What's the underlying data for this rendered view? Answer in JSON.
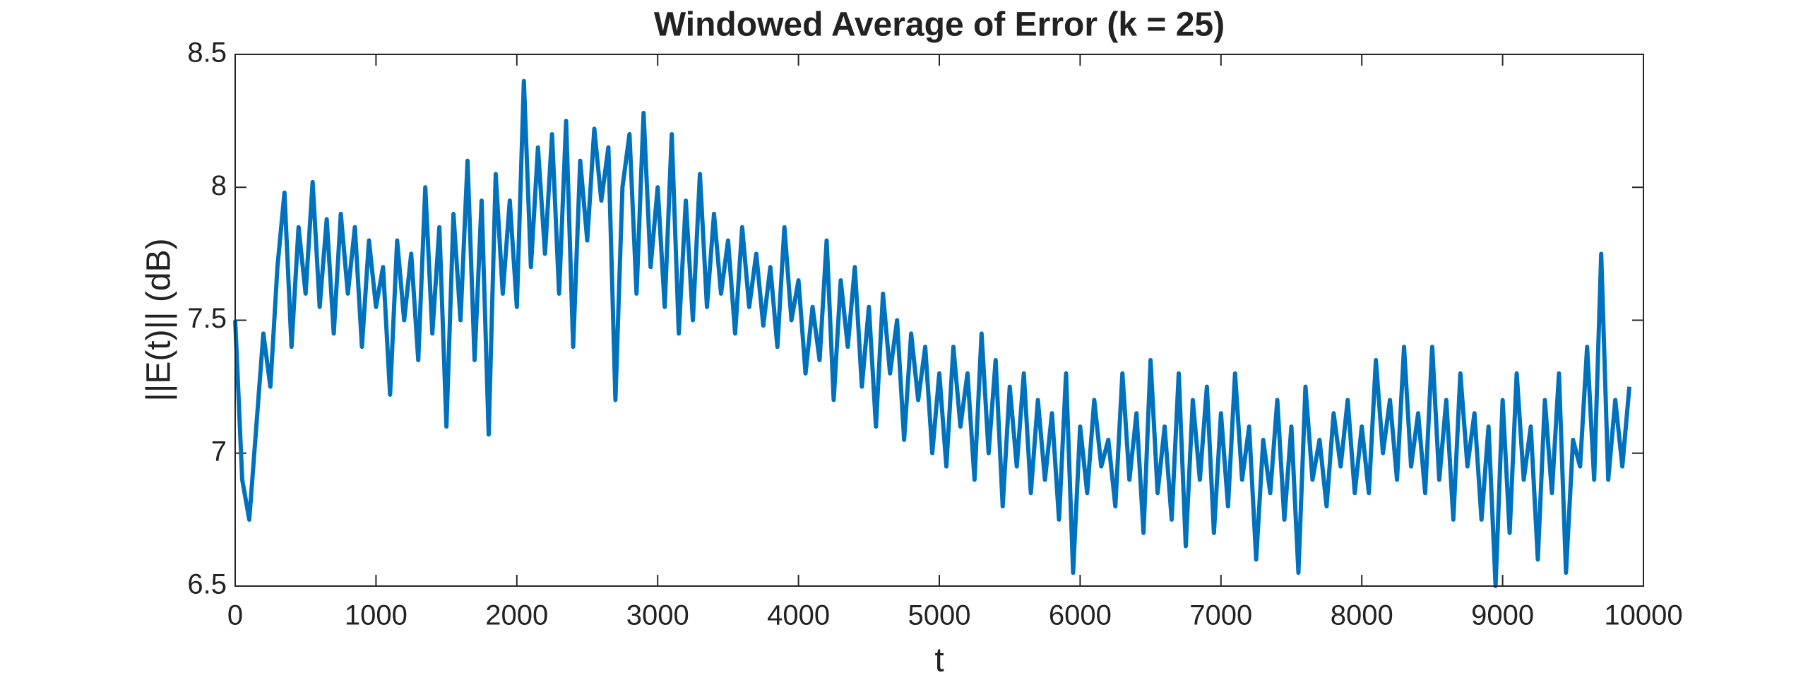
{
  "chart_data": {
    "type": "line",
    "title": "Windowed Average of Error (k = 25)",
    "x_label": "t",
    "y_label": "||E(t)|| (dB)",
    "color": "#0072bd",
    "xlim": [
      0,
      10000
    ],
    "xticks": [
      0,
      1000,
      2000,
      3000,
      4000,
      5000,
      6000,
      7000,
      8000,
      9000,
      10000
    ],
    "ylim": [
      6.5,
      8.5
    ],
    "yticks": [
      6.5,
      7,
      7.5,
      8,
      8.5
    ],
    "x": [
      0,
      50,
      100,
      150,
      200,
      250,
      300,
      350,
      400,
      450,
      500,
      550,
      600,
      650,
      700,
      750,
      800,
      850,
      900,
      950,
      1000,
      1050,
      1100,
      1150,
      1200,
      1250,
      1300,
      1350,
      1400,
      1450,
      1500,
      1550,
      1600,
      1650,
      1700,
      1750,
      1800,
      1850,
      1900,
      1950,
      2000,
      2050,
      2100,
      2150,
      2200,
      2250,
      2300,
      2350,
      2400,
      2450,
      2500,
      2550,
      2600,
      2650,
      2700,
      2750,
      2800,
      2850,
      2900,
      2950,
      3000,
      3050,
      3100,
      3150,
      3200,
      3250,
      3300,
      3350,
      3400,
      3450,
      3500,
      3550,
      3600,
      3650,
      3700,
      3750,
      3800,
      3850,
      3900,
      3950,
      4000,
      4050,
      4100,
      4150,
      4200,
      4250,
      4300,
      4350,
      4400,
      4450,
      4500,
      4550,
      4600,
      4650,
      4700,
      4750,
      4800,
      4850,
      4900,
      4950,
      5000,
      5050,
      5100,
      5150,
      5200,
      5250,
      5300,
      5350,
      5400,
      5450,
      5500,
      5550,
      5600,
      5650,
      5700,
      5750,
      5800,
      5850,
      5900,
      5950,
      6000,
      6050,
      6100,
      6150,
      6200,
      6250,
      6300,
      6350,
      6400,
      6450,
      6500,
      6550,
      6600,
      6650,
      6700,
      6750,
      6800,
      6850,
      6900,
      6950,
      7000,
      7050,
      7100,
      7150,
      7200,
      7250,
      7300,
      7350,
      7400,
      7450,
      7500,
      7550,
      7600,
      7650,
      7700,
      7750,
      7800,
      7850,
      7900,
      7950,
      8000,
      8050,
      8100,
      8150,
      8200,
      8250,
      8300,
      8350,
      8400,
      8450,
      8500,
      8550,
      8600,
      8650,
      8700,
      8750,
      8800,
      8850,
      8900,
      8950,
      9000,
      9050,
      9100,
      9150,
      9200,
      9250,
      9300,
      9350,
      9400,
      9450,
      9500,
      9550,
      9600,
      9650,
      9700,
      9750,
      9800,
      9850,
      9900
    ],
    "values": [
      7.5,
      6.9,
      6.75,
      7.1,
      7.45,
      7.25,
      7.7,
      7.98,
      7.4,
      7.85,
      7.6,
      8.02,
      7.55,
      7.88,
      7.45,
      7.9,
      7.6,
      7.85,
      7.4,
      7.8,
      7.55,
      7.7,
      7.22,
      7.8,
      7.5,
      7.75,
      7.35,
      8.0,
      7.45,
      7.85,
      7.1,
      7.9,
      7.5,
      8.1,
      7.35,
      7.95,
      7.07,
      8.05,
      7.6,
      7.95,
      7.55,
      8.4,
      7.7,
      8.15,
      7.75,
      8.2,
      7.6,
      8.25,
      7.4,
      8.1,
      7.8,
      8.22,
      7.95,
      8.15,
      7.2,
      8.0,
      8.2,
      7.6,
      8.28,
      7.7,
      8.0,
      7.55,
      8.2,
      7.45,
      7.95,
      7.5,
      8.05,
      7.55,
      7.9,
      7.6,
      7.8,
      7.45,
      7.85,
      7.55,
      7.75,
      7.48,
      7.7,
      7.4,
      7.85,
      7.5,
      7.65,
      7.3,
      7.55,
      7.35,
      7.8,
      7.2,
      7.65,
      7.4,
      7.7,
      7.25,
      7.55,
      7.1,
      7.6,
      7.3,
      7.5,
      7.05,
      7.45,
      7.2,
      7.4,
      7.0,
      7.3,
      6.95,
      7.4,
      7.1,
      7.3,
      6.9,
      7.45,
      7.0,
      7.35,
      6.8,
      7.25,
      6.95,
      7.3,
      6.85,
      7.2,
      6.9,
      7.15,
      6.75,
      7.3,
      6.55,
      7.1,
      6.85,
      7.2,
      6.95,
      7.05,
      6.8,
      7.3,
      6.9,
      7.15,
      6.7,
      7.35,
      6.85,
      7.1,
      6.75,
      7.3,
      6.65,
      7.2,
      6.9,
      7.25,
      6.7,
      7.15,
      6.8,
      7.3,
      6.9,
      7.1,
      6.6,
      7.05,
      6.85,
      7.2,
      6.75,
      7.1,
      6.55,
      7.25,
      6.9,
      7.05,
      6.8,
      7.15,
      6.95,
      7.2,
      6.85,
      7.1,
      6.85,
      7.35,
      7.0,
      7.2,
      6.9,
      7.4,
      6.95,
      7.15,
      6.85,
      7.4,
      6.9,
      7.2,
      6.75,
      7.3,
      6.95,
      7.15,
      6.75,
      7.1,
      6.5,
      7.2,
      6.7,
      7.3,
      6.9,
      7.1,
      6.6,
      7.2,
      6.85,
      7.3,
      6.55,
      7.05,
      6.95,
      7.4,
      6.9,
      7.75,
      6.9,
      7.2,
      6.95,
      7.25
    ]
  }
}
